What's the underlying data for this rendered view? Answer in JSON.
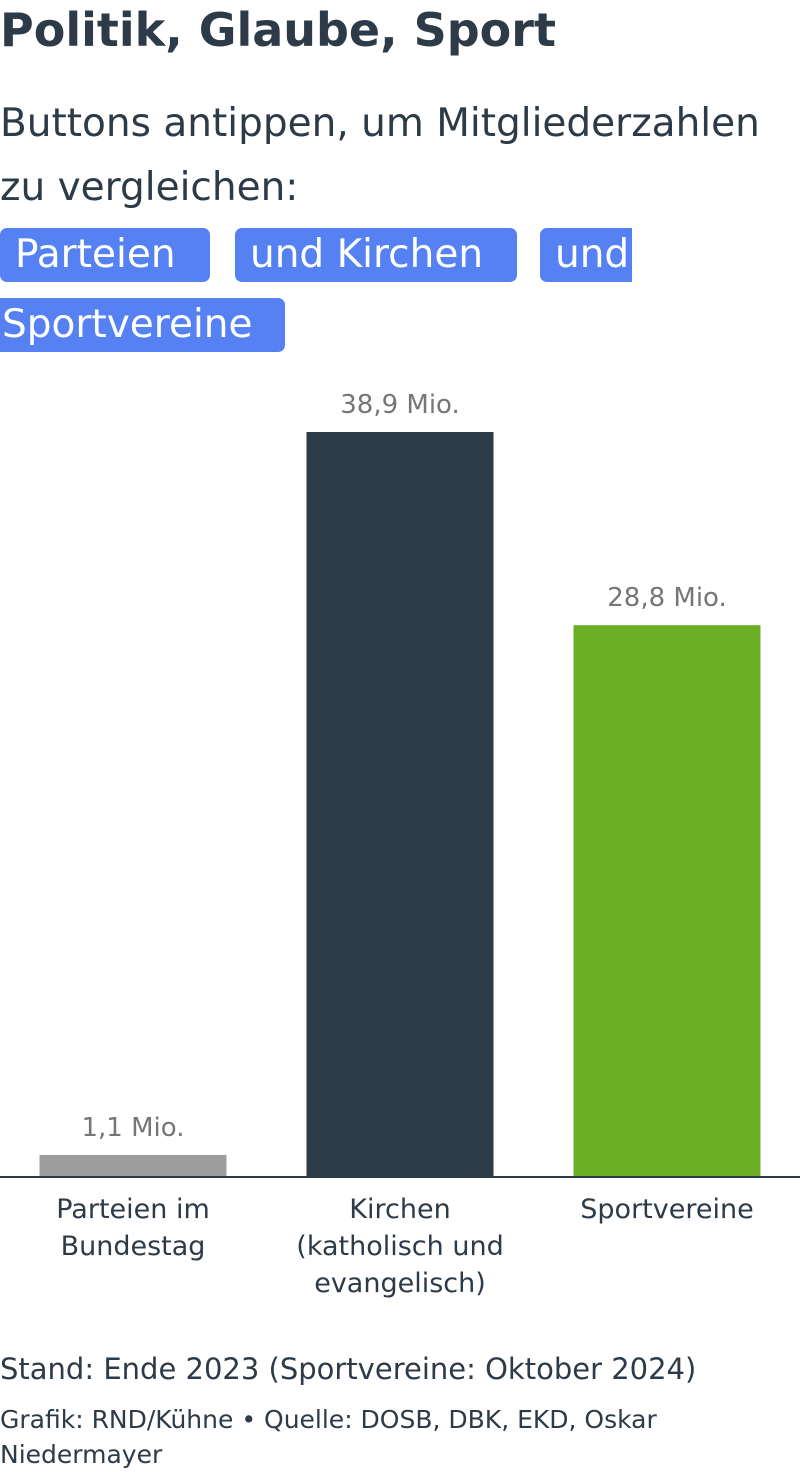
{
  "header": {
    "title": "Politik, Glaube, Sport",
    "subtitle": "Buttons antippen, um Mitgliederzahlen zu vergleichen:"
  },
  "buttons": [
    {
      "label": "Parteien"
    },
    {
      "label": "und Kirchen"
    },
    {
      "label": "und"
    },
    {
      "label": "Sportvereine"
    }
  ],
  "chart_data": {
    "type": "bar",
    "categories": [
      [
        "Parteien im",
        "Bundestag"
      ],
      [
        "Kirchen",
        "(katholisch und",
        "evangelisch)"
      ],
      [
        "Sportvereine"
      ]
    ],
    "values": [
      1.1,
      38.9,
      28.8
    ],
    "value_labels": [
      "1,1 Mio.",
      "38,9 Mio.",
      "28,8 Mio."
    ],
    "colors": [
      "#9d9d9d",
      "#2d3a47",
      "#6caf27"
    ],
    "axis_color": "#2d3a47",
    "label_color": "#767676",
    "ylim": [
      0,
      38.9
    ],
    "grid": false
  },
  "footer": {
    "note": "Stand: Ende 2023 (Sportvereine: Oktober 2024)",
    "credit": "Grafik: RND/Kühne • Quelle: DOSB, DBK, EKD, Oskar Niedermayer"
  }
}
